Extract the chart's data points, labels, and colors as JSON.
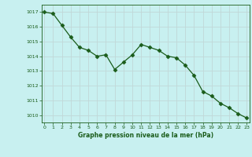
{
  "x": [
    0,
    1,
    2,
    3,
    4,
    5,
    6,
    7,
    8,
    9,
    10,
    11,
    12,
    13,
    14,
    15,
    16,
    17,
    18,
    19,
    20,
    21,
    22,
    23
  ],
  "y": [
    1017.0,
    1016.9,
    1016.1,
    1015.3,
    1014.6,
    1014.4,
    1014.0,
    1014.1,
    1013.1,
    1013.6,
    1014.1,
    1014.8,
    1014.6,
    1014.4,
    1014.0,
    1013.9,
    1013.4,
    1012.7,
    1011.6,
    1011.3,
    1010.8,
    1010.5,
    1010.1,
    1009.8
  ],
  "line_color": "#1a5c1a",
  "marker": "D",
  "marker_size": 2.5,
  "background_color": "#c8f0f0",
  "grid_color": "#c0d8d8",
  "xlabel": "Graphe pression niveau de la mer (hPa)",
  "xlabel_color": "#1a5c1a",
  "tick_color": "#1a5c1a",
  "ylim": [
    1009.5,
    1017.5
  ],
  "yticks": [
    1010,
    1011,
    1012,
    1013,
    1014,
    1015,
    1016,
    1017
  ],
  "xticks": [
    0,
    1,
    2,
    3,
    4,
    5,
    6,
    7,
    8,
    9,
    10,
    11,
    12,
    13,
    14,
    15,
    16,
    17,
    18,
    19,
    20,
    21,
    22,
    23
  ],
  "xlim": [
    -0.3,
    23.3
  ]
}
